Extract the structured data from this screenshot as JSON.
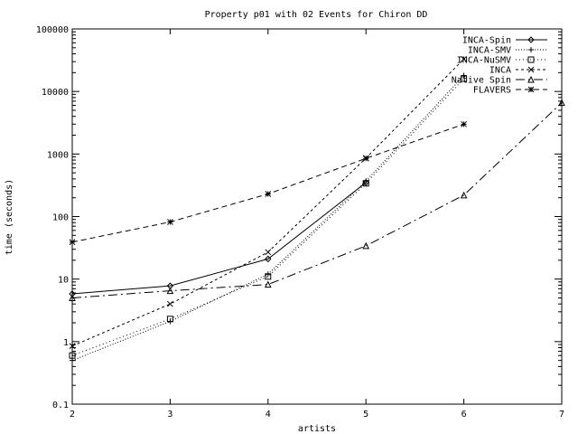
{
  "chart_data": {
    "type": "line",
    "title": "Property p01 with 02 Events for Chiron DD",
    "xlabel": "artists",
    "ylabel": "time (seconds)",
    "xlim": [
      2,
      7
    ],
    "ylim": [
      0.1,
      100000
    ],
    "yscale": "log",
    "x_ticks": [
      2,
      3,
      4,
      5,
      6,
      7
    ],
    "x_tick_labels": [
      "2",
      "3",
      "4",
      "5",
      "6",
      "7"
    ],
    "y_ticks": [
      0.1,
      1,
      10,
      100,
      1000,
      10000,
      100000
    ],
    "y_tick_labels": [
      "0.1",
      "1",
      "10",
      "100",
      "1000",
      "10000",
      "100000"
    ],
    "grid": false,
    "legend_position": "top-right",
    "series": [
      {
        "name": "INCA-Spin",
        "marker": "diamond",
        "dash": "",
        "points": [
          [
            2,
            5.8
          ],
          [
            3,
            7.8
          ],
          [
            4,
            21
          ],
          [
            5,
            350
          ]
        ]
      },
      {
        "name": "INCA-SMV",
        "marker": "plus",
        "dash": "1,2",
        "points": [
          [
            2,
            0.5
          ],
          [
            3,
            2.1
          ],
          [
            4,
            12
          ],
          [
            5,
            370
          ],
          [
            6,
            18000
          ]
        ]
      },
      {
        "name": "INCA-NuSMV",
        "marker": "square",
        "dash": "1,3",
        "points": [
          [
            2,
            0.6
          ],
          [
            3,
            2.3
          ],
          [
            4,
            11
          ],
          [
            5,
            340
          ],
          [
            6,
            16000
          ]
        ]
      },
      {
        "name": "INCA",
        "marker": "cross",
        "dash": "3,3",
        "points": [
          [
            2,
            0.85
          ],
          [
            3,
            4
          ],
          [
            4,
            27
          ],
          [
            5,
            860
          ],
          [
            6,
            33000
          ]
        ]
      },
      {
        "name": "Native Spin",
        "marker": "triangle",
        "dash": "10,4,2,4",
        "points": [
          [
            2,
            5
          ],
          [
            3,
            6.5
          ],
          [
            4,
            8.2
          ],
          [
            5,
            34
          ],
          [
            6,
            220
          ],
          [
            7,
            6600
          ]
        ]
      },
      {
        "name": "FLAVERS",
        "marker": "star",
        "dash": "6,4",
        "points": [
          [
            2,
            39
          ],
          [
            3,
            82
          ],
          [
            4,
            230
          ],
          [
            5,
            850
          ],
          [
            6,
            3000
          ]
        ]
      }
    ]
  }
}
